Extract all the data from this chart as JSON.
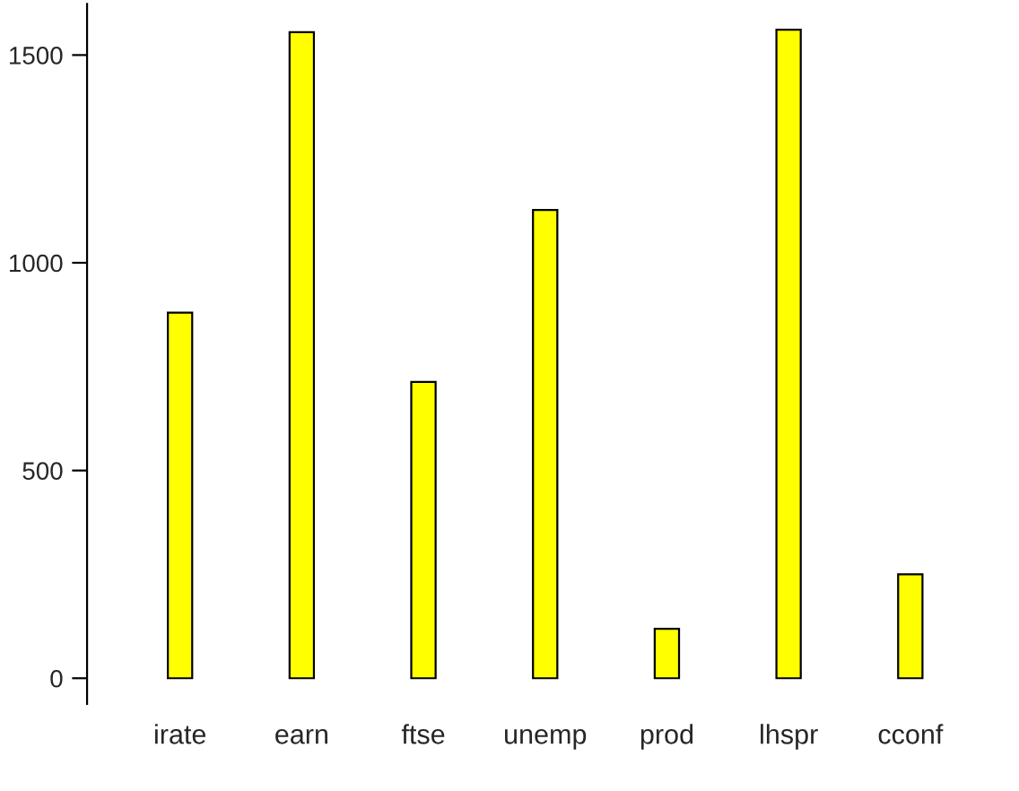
{
  "chart_data": {
    "type": "bar",
    "categories": [
      "irate",
      "earn",
      "ftse",
      "unemp",
      "prod",
      "lhspr",
      "cconf"
    ],
    "values": [
      880,
      1555,
      713,
      1127,
      119,
      1561,
      250
    ],
    "color": "#ffff00",
    "ylim": [
      -62,
      1623
    ],
    "yticks": [
      0,
      500,
      1000,
      1500
    ],
    "grid": false
  }
}
